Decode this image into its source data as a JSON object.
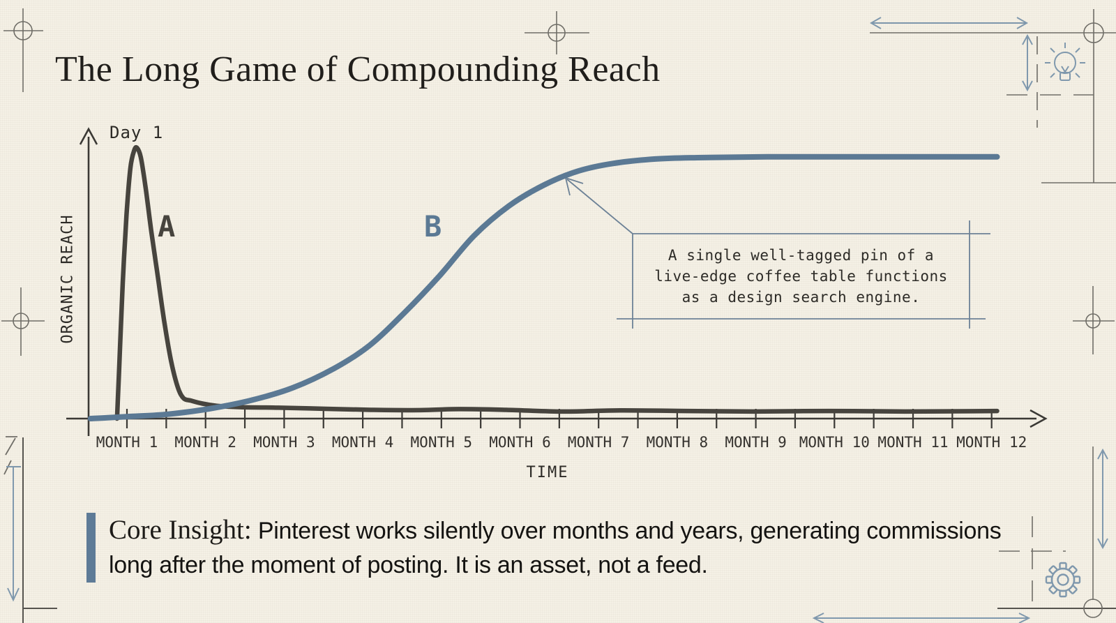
{
  "title": "The Long Game of Compounding Reach",
  "chart_data": {
    "type": "line",
    "title": "The Long Game of Compounding Reach",
    "xlabel": "TIME",
    "ylabel": "ORGANIC REACH",
    "x_tick_labels": [
      "MONTH 1",
      "MONTH 2",
      "MONTH 3",
      "MONTH 4",
      "MONTH 5",
      "MONTH 6",
      "MONTH 7",
      "MONTH 8",
      "MONTH 9",
      "MONTH 10",
      "MONTH 11",
      "MONTH 12"
    ],
    "ylim": [
      0,
      1
    ],
    "grid": false,
    "legend_position": "inline-curve-labels",
    "peak_annotation": "Day 1",
    "callout_lines": [
      "A single well-tagged pin of a",
      "live-edge coffee table functions",
      "as a design search engine."
    ],
    "series": [
      {
        "name": "A",
        "description": "Feed-based reach: sharp spike on Day 1, rapid decay to near zero",
        "color": "#47443e",
        "width": 6.5,
        "points_frac": [
          [
            0.03,
            0.0
          ],
          [
            0.033,
            0.25
          ],
          [
            0.036,
            0.5
          ],
          [
            0.04,
            0.75
          ],
          [
            0.044,
            0.92
          ],
          [
            0.048,
            0.985
          ],
          [
            0.051,
            0.995
          ],
          [
            0.055,
            0.96
          ],
          [
            0.06,
            0.85
          ],
          [
            0.066,
            0.69
          ],
          [
            0.073,
            0.52
          ],
          [
            0.08,
            0.35
          ],
          [
            0.087,
            0.21
          ],
          [
            0.094,
            0.115
          ],
          [
            0.1,
            0.075
          ],
          [
            0.108,
            0.066
          ],
          [
            0.12,
            0.055
          ],
          [
            0.135,
            0.047
          ],
          [
            0.16,
            0.042
          ],
          [
            0.2,
            0.04
          ],
          [
            0.25,
            0.036
          ],
          [
            0.3,
            0.032
          ],
          [
            0.35,
            0.031
          ],
          [
            0.39,
            0.035
          ],
          [
            0.44,
            0.032
          ],
          [
            0.5,
            0.026
          ],
          [
            0.56,
            0.03
          ],
          [
            0.63,
            0.028
          ],
          [
            0.7,
            0.026
          ],
          [
            0.78,
            0.028
          ],
          [
            0.86,
            0.026
          ],
          [
            0.957,
            0.028
          ]
        ]
      },
      {
        "name": "B",
        "description": "Pinterest compounding reach: slow start, S-curve growth, high plateau",
        "color": "#5b7994",
        "width": 8,
        "points_frac": [
          [
            0.002,
            0.0
          ],
          [
            0.02,
            0.003
          ],
          [
            0.045,
            0.008
          ],
          [
            0.083,
            0.016
          ],
          [
            0.127,
            0.036
          ],
          [
            0.171,
            0.067
          ],
          [
            0.215,
            0.113
          ],
          [
            0.259,
            0.185
          ],
          [
            0.296,
            0.269
          ],
          [
            0.333,
            0.39
          ],
          [
            0.37,
            0.526
          ],
          [
            0.406,
            0.672
          ],
          [
            0.443,
            0.782
          ],
          [
            0.48,
            0.859
          ],
          [
            0.516,
            0.91
          ],
          [
            0.553,
            0.938
          ],
          [
            0.597,
            0.954
          ],
          [
            0.641,
            0.959
          ],
          [
            0.715,
            0.962
          ],
          [
            0.825,
            0.962
          ],
          [
            0.957,
            0.962
          ]
        ]
      }
    ]
  },
  "insight": {
    "label": "Core Insight:",
    "text": " Pinterest works silently over months and years, generating commissions long after the moment of posting. It is an asset, not a feed."
  },
  "decorations": {
    "top_right_icon": "lightbulb",
    "bottom_right_icon": "gear",
    "corner_marks": "registration-crosshairs",
    "accent_blue": "#7f98ad",
    "ink_gray": "#6f6d67"
  }
}
